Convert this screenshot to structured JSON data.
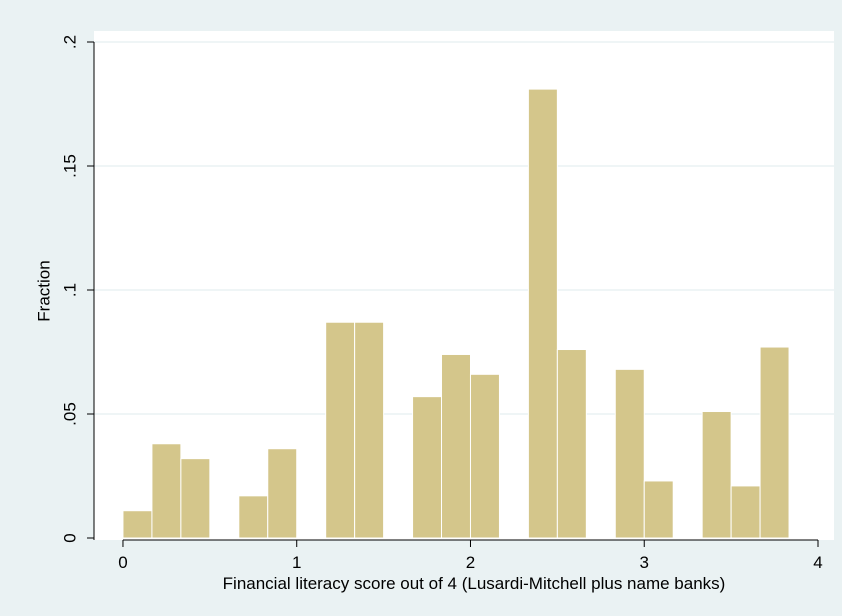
{
  "chart_data": {
    "type": "bar",
    "subtype": "histogram",
    "xlabel": "Financial literacy score out of 4 (Lusardi-Mitchell plus name banks)",
    "ylabel": "Fraction",
    "xlim": [
      -0.1667,
      4.0
    ],
    "ylim": [
      0,
      0.2
    ],
    "x_ticks": [
      {
        "value": 0,
        "label": "0"
      },
      {
        "value": 1,
        "label": "1"
      },
      {
        "value": 2,
        "label": "2"
      },
      {
        "value": 3,
        "label": "3"
      },
      {
        "value": 4,
        "label": "4"
      }
    ],
    "y_ticks": [
      {
        "value": 0,
        "label": "0"
      },
      {
        "value": 0.05,
        "label": ".05"
      },
      {
        "value": 0.1,
        "label": ".1"
      },
      {
        "value": 0.15,
        "label": ".15"
      },
      {
        "value": 0.2,
        "label": ".2"
      }
    ],
    "grid": true,
    "bin_width": 0.1667,
    "bins": [
      {
        "x0": 0.0,
        "x1": 0.1667,
        "value": 0.011
      },
      {
        "x0": 0.1667,
        "x1": 0.3333,
        "value": 0.038
      },
      {
        "x0": 0.3333,
        "x1": 0.5,
        "value": 0.032
      },
      {
        "x0": 0.6667,
        "x1": 0.8333,
        "value": 0.017
      },
      {
        "x0": 0.8333,
        "x1": 1.0,
        "value": 0.036
      },
      {
        "x0": 1.1667,
        "x1": 1.3333,
        "value": 0.087
      },
      {
        "x0": 1.3333,
        "x1": 1.5,
        "value": 0.087
      },
      {
        "x0": 1.6667,
        "x1": 1.8333,
        "value": 0.057
      },
      {
        "x0": 1.8333,
        "x1": 2.0,
        "value": 0.074
      },
      {
        "x0": 2.0,
        "x1": 2.1667,
        "value": 0.066
      },
      {
        "x0": 2.3333,
        "x1": 2.5,
        "value": 0.181
      },
      {
        "x0": 2.5,
        "x1": 2.6667,
        "value": 0.076
      },
      {
        "x0": 2.8333,
        "x1": 3.0,
        "value": 0.068
      },
      {
        "x0": 3.0,
        "x1": 3.1667,
        "value": 0.023
      },
      {
        "x0": 3.3333,
        "x1": 3.5,
        "value": 0.051
      },
      {
        "x0": 3.5,
        "x1": 3.6667,
        "value": 0.021
      },
      {
        "x0": 3.6667,
        "x1": 3.8333,
        "value": 0.077
      }
    ],
    "colors": {
      "outer_background": "#eaf2f3",
      "plot_background": "#ffffff",
      "grid": "#eaf2f3",
      "bar_fill": "#d4c68b",
      "bar_edge": "#ffffff"
    }
  }
}
